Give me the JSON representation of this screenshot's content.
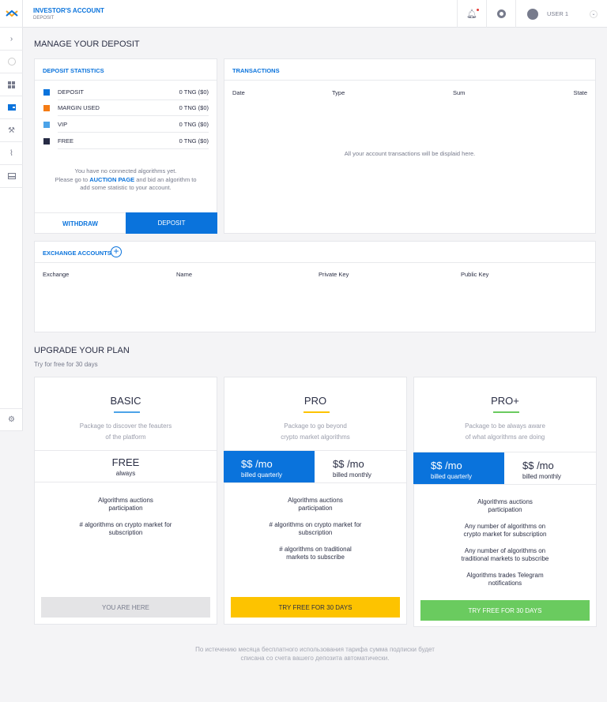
{
  "header": {
    "title": "INVESTOR'S ACCOUNT",
    "subtitle": "DEPOSIT",
    "user": "USER 1"
  },
  "sidebar": {
    "icons": [
      "logo-icon",
      "chevron-right-icon",
      "minus-circle-icon",
      "dashboard-icon",
      "wallet-icon",
      "auction-icon",
      "chart-icon",
      "card-icon",
      "gear-icon"
    ]
  },
  "page_title": "MANAGE YOUR DEPOSIT",
  "deposit_stats": {
    "title": "DEPOSIT STATISTICS",
    "items": [
      {
        "label": "DEPOSIT",
        "value": "0 TNG ($0)",
        "color": "#0a73dc"
      },
      {
        "label": "MARGIN USED",
        "value": "0 TNG ($0)",
        "color": "#f57c14"
      },
      {
        "label": "VIP",
        "value": "0 TNG ($0)",
        "color": "#4ca3e8"
      },
      {
        "label": "FREE",
        "value": "0 TNG ($0)",
        "color": "#262b45"
      }
    ],
    "msg1": "You have no connected algorithms yet.",
    "msg2a": "Please go to ",
    "link": "AUCTION PAGE",
    "msg2b": " and bid an algorithm to",
    "msg3": "add some statistic to your account.",
    "withdraw": "WITHDRAW",
    "deposit": "DEPOSIT"
  },
  "transactions": {
    "title": "TRANSACTIONS",
    "columns": [
      "Date",
      "Type",
      "Sum",
      "State"
    ],
    "empty": "All your account transactions will be displaid here."
  },
  "exchange": {
    "title": "EXCHANGE ACCOUNTS",
    "columns": [
      "Exchange",
      "Name",
      "Private Key",
      "Public Key"
    ]
  },
  "upgrade": {
    "title": "UPGRADE YOUR PLAN",
    "subtitle": "Try for free for 30 days"
  },
  "plans": [
    {
      "name": "BASIC",
      "accent": "#4ca3e8",
      "desc1": "Package to discover the feauters",
      "desc2": "of the platform",
      "price": "FREE",
      "period": "always",
      "features": [
        "Algorithms auctions participation",
        "# algorithms on crypto market for subscription"
      ],
      "button": "YOU ARE HERE"
    },
    {
      "name": "PRO",
      "accent": "#fdc300",
      "desc1": "Package to go beyond",
      "desc2": "crypto market algorithms",
      "price_q": "$$ /mo",
      "billed_q": "billed quarterly",
      "price_m": "$$ /mo",
      "billed_m": "billed monthly",
      "features": [
        "Algorithms auctions participation",
        "# algorithms on crypto market for subscription",
        "# algorithms on traditional markets to subscribe"
      ],
      "button": "TRY FREE FOR 30 DAYS"
    },
    {
      "name": "PRO+",
      "accent": "#6acb5f",
      "desc1": "Package to be always aware",
      "desc2": "of what algorithms are doing",
      "price_q": "$$ /mo",
      "billed_q": "billed quarterly",
      "price_m": "$$ /mo",
      "billed_m": "billed monthly",
      "features": [
        "Algorithms auctions participation",
        "Any number of algorithms on crypto market for subscription",
        "Any number of algorithms on traditional markets to subscribe",
        "Algorithms trades Telegram notifications"
      ],
      "button": "TRY FREE FOR 30 DAYS"
    }
  ],
  "footer": {
    "line1": "По истечению месяца бесплатного использования тарифа сумма подписки будет",
    "line2": "списана со счета вашего депозита автоматически."
  }
}
